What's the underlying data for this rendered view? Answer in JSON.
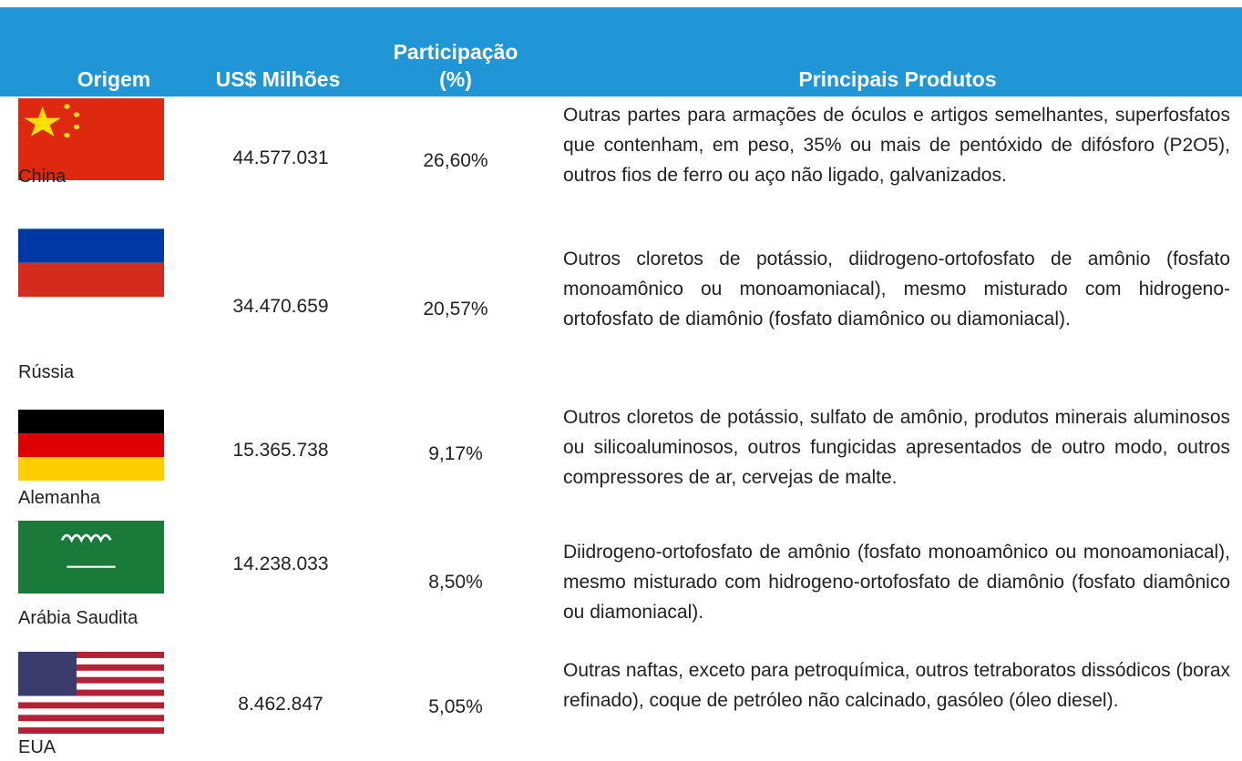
{
  "header": {
    "origin": "Origem",
    "value": "US$ Milhões",
    "share": "Participação (%)",
    "products": "Principais Produtos"
  },
  "rows": [
    {
      "origin": "China",
      "value": "44.577.031",
      "share": "26,60%",
      "products": "Outras partes para armações de óculos e artigos semelhantes, superfosfatos que contenham, em peso, 35% ou mais de pentóxido de difósforo (P2O5), outros fios de ferro ou aço não ligado, galvanizados."
    },
    {
      "origin": "Rússia",
      "value": "34.470.659",
      "share": "20,57%",
      "products": "Outros cloretos de potássio, diidrogeno-ortofosfato de amônio (fosfato monoamônico ou monoamoniacal), mesmo misturado com hidrogeno-ortofosfato de diamônio (fosfato diamônico ou diamoniacal)."
    },
    {
      "origin": "Alemanha",
      "value": "15.365.738",
      "share": "9,17%",
      "products": "Outros cloretos de potássio, sulfato de amônio, produtos minerais aluminosos ou silicoaluminosos, outros fungicidas apresentados de outro modo, outros compressores de ar, cervejas de malte."
    },
    {
      "origin": "Arábia Saudita",
      "value": "14.238.033",
      "share": "8,50%",
      "products": "Diidrogeno-ortofosfato de amônio (fosfato monoamônico ou monoamoniacal), mesmo misturado com hidrogeno-ortofosfato de diamônio (fosfato diamônico ou diamoniacal)."
    },
    {
      "origin": "EUA",
      "value": "8.462.847",
      "share": "5,05%",
      "products": "Outras naftas, exceto para petroquímica, outros tetraboratos dissódicos (borax refinado), coque de petróleo não calcinado, gasóleo (óleo diesel)."
    }
  ]
}
